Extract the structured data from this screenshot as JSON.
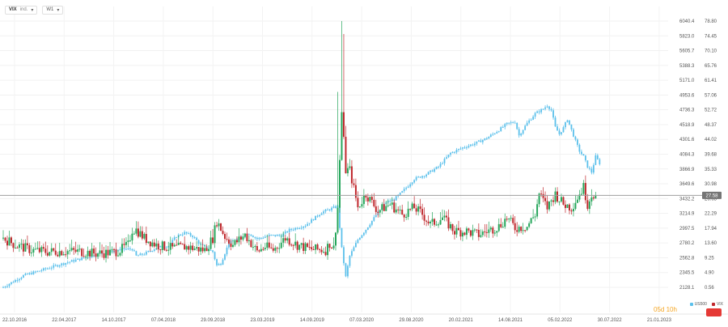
{
  "toolbar": {
    "symbol": "VIX",
    "symbol_sub": "ind.",
    "timeframe": "W1"
  },
  "colors": {
    "up_candle": "#26a65b",
    "down_candle": "#c0282d",
    "overlay_line": "#5bc0eb",
    "price_line": "#9e9e9e",
    "price_badge": "#757575",
    "countdown": "#f5a623",
    "vix_button": "#e53935"
  },
  "countdown": "05d 10h",
  "legend": [
    {
      "name": "US500",
      "color": "#5bc0eb"
    },
    {
      "name": "VIX",
      "color": "#c0282d"
    }
  ],
  "chart_data": {
    "type": "candlestick",
    "x_labels": [
      "22.10.2016",
      "22.04.2017",
      "14.10.2017",
      "07.04.2018",
      "29.09.2018",
      "23.03.2019",
      "14.09.2019",
      "07.03.2020",
      "29.08.2020",
      "20.02.2021",
      "14.08.2021",
      "05.02.2022",
      "30.07.2022",
      "21.01.2023"
    ],
    "xlim": [
      0,
      330
    ],
    "right_axis_vix": [
      "78.80",
      "74.45",
      "70.10",
      "65.76",
      "61.41",
      "57.06",
      "52.72",
      "48.37",
      "44.02",
      "39.68",
      "35.33",
      "30.98",
      "26.63",
      "22.29",
      "17.94",
      "13.60",
      "9.25",
      "4.90",
      "0.56"
    ],
    "left_axis_us500": [
      "6040.4",
      "5823.0",
      "5605.7",
      "5388.3",
      "5171.0",
      "4953.6",
      "4736.3",
      "4518.9",
      "4301.6",
      "4084.3",
      "3866.9",
      "3649.6",
      "3432.2",
      "3214.9",
      "2997.5",
      "2780.2",
      "2562.8",
      "2345.5",
      "2128.1"
    ],
    "vix_range": [
      0.56,
      78.8
    ],
    "us500_range": [
      2128.1,
      6040.4
    ],
    "current_price": "27.58",
    "current_value": 27.58,
    "vix_anchors": [
      [
        0,
        15
      ],
      [
        6,
        13
      ],
      [
        14,
        11.5
      ],
      [
        22,
        11
      ],
      [
        30,
        11.2
      ],
      [
        38,
        11.1
      ],
      [
        46,
        10.5
      ],
      [
        54,
        10.8
      ],
      [
        58,
        11.5
      ],
      [
        62,
        13
      ],
      [
        64,
        17.5
      ],
      [
        66,
        17.5
      ],
      [
        70,
        15
      ],
      [
        76,
        13
      ],
      [
        84,
        12
      ],
      [
        90,
        12.5
      ],
      [
        100,
        11.5
      ],
      [
        104,
        15
      ],
      [
        106,
        20
      ],
      [
        110,
        15.5
      ],
      [
        114,
        13
      ],
      [
        120,
        16
      ],
      [
        126,
        11
      ],
      [
        130,
        12.5
      ],
      [
        134,
        11.5
      ],
      [
        140,
        15
      ],
      [
        146,
        13
      ],
      [
        152,
        11.8
      ],
      [
        160,
        11.5
      ],
      [
        162,
        13.5
      ],
      [
        164,
        12
      ],
      [
        166,
        24
      ],
      [
        168,
        52
      ],
      [
        170,
        35
      ],
      [
        172,
        35
      ],
      [
        176,
        24
      ],
      [
        180,
        28
      ],
      [
        186,
        23
      ],
      [
        192,
        25
      ],
      [
        198,
        22
      ],
      [
        204,
        24
      ],
      [
        208,
        22
      ],
      [
        212,
        19
      ],
      [
        218,
        21
      ],
      [
        224,
        17
      ],
      [
        230,
        17
      ],
      [
        236,
        16
      ],
      [
        240,
        17
      ],
      [
        246,
        18.5
      ],
      [
        250,
        21
      ],
      [
        254,
        18
      ],
      [
        260,
        18.5
      ],
      [
        264,
        22
      ],
      [
        266,
        28
      ],
      [
        270,
        24
      ],
      [
        274,
        28
      ],
      [
        278,
        25
      ],
      [
        282,
        24
      ],
      [
        285,
        27
      ],
      [
        288,
        30
      ],
      [
        290,
        25
      ],
      [
        292,
        28
      ],
      [
        294,
        27.58
      ]
    ],
    "vix_spikes": [
      [
        168,
        78.8
      ],
      [
        166,
        58
      ],
      [
        170,
        48
      ],
      [
        169,
        75
      ]
    ],
    "us500_anchors": [
      [
        0,
        2130
      ],
      [
        10,
        2300
      ],
      [
        20,
        2390
      ],
      [
        30,
        2480
      ],
      [
        40,
        2560
      ],
      [
        50,
        2640
      ],
      [
        60,
        2690
      ],
      [
        64,
        2690
      ],
      [
        66,
        2590
      ],
      [
        70,
        2620
      ],
      [
        76,
        2710
      ],
      [
        82,
        2740
      ],
      [
        86,
        2880
      ],
      [
        90,
        2930
      ],
      [
        94,
        2880
      ],
      [
        98,
        2750
      ],
      [
        104,
        2650
      ],
      [
        106,
        2450
      ],
      [
        108,
        2480
      ],
      [
        112,
        2780
      ],
      [
        116,
        2840
      ],
      [
        122,
        2920
      ],
      [
        126,
        2840
      ],
      [
        132,
        2890
      ],
      [
        138,
        2890
      ],
      [
        142,
        2970
      ],
      [
        150,
        3040
      ],
      [
        158,
        3230
      ],
      [
        166,
        3320
      ],
      [
        168,
        2700
      ],
      [
        170,
        2280
      ],
      [
        172,
        2590
      ],
      [
        176,
        2830
      ],
      [
        180,
        2980
      ],
      [
        186,
        3230
      ],
      [
        190,
        3380
      ],
      [
        194,
        3420
      ],
      [
        198,
        3530
      ],
      [
        204,
        3720
      ],
      [
        210,
        3790
      ],
      [
        216,
        3900
      ],
      [
        222,
        4100
      ],
      [
        228,
        4180
      ],
      [
        234,
        4240
      ],
      [
        240,
        4320
      ],
      [
        246,
        4440
      ],
      [
        250,
        4530
      ],
      [
        254,
        4560
      ],
      [
        256,
        4360
      ],
      [
        260,
        4540
      ],
      [
        264,
        4680
      ],
      [
        268,
        4750
      ],
      [
        270,
        4800
      ],
      [
        272,
        4730
      ],
      [
        274,
        4480
      ],
      [
        276,
        4380
      ],
      [
        278,
        4470
      ],
      [
        280,
        4600
      ],
      [
        282,
        4440
      ],
      [
        284,
        4280
      ],
      [
        286,
        4130
      ],
      [
        288,
        4050
      ],
      [
        290,
        3900
      ],
      [
        292,
        3820
      ],
      [
        294,
        4050
      ],
      [
        296,
        3950
      ]
    ]
  }
}
